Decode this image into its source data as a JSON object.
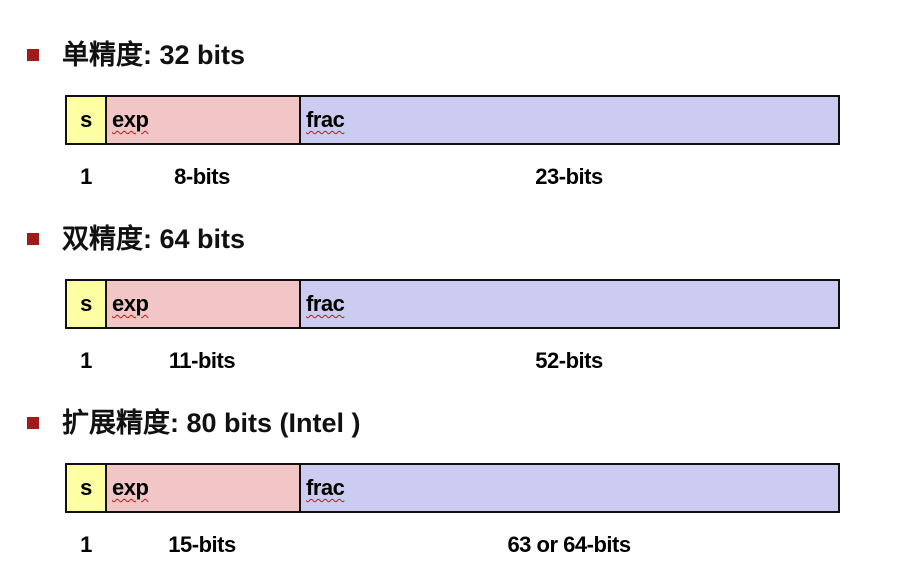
{
  "sections": [
    {
      "title": "单精度: 32 bits",
      "fields": [
        "s",
        "exp",
        "frac"
      ],
      "widths": [
        "1",
        "8-bits",
        "23-bits"
      ]
    },
    {
      "title": "双精度: 64 bits",
      "fields": [
        "s",
        "exp",
        "frac"
      ],
      "widths": [
        "1",
        "11-bits",
        "52-bits"
      ]
    },
    {
      "title": "扩展精度: 80 bits (Intel )",
      "fields": [
        "s",
        "exp",
        "frac"
      ],
      "widths": [
        "1",
        "15-bits",
        "63 or 64-bits"
      ]
    }
  ]
}
